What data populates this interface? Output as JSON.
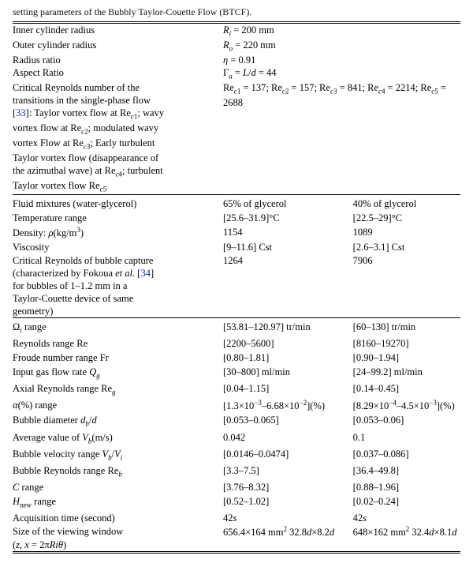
{
  "caption": "setting parameters of the Bubbly Taylor-Couette Flow (BTCF).",
  "geom": {
    "inner_label": "Inner cylinder radius",
    "inner_val": "Rᵢ = 200 mm",
    "outer_label": "Outer cylinder radius",
    "outer_val": "Rₒ = 220 mm",
    "ratio_label": "Radius ratio",
    "ratio_val": "η = 0.91",
    "aspect_label": "Aspect Ratio",
    "aspect_val": "Γₐ = L/d = 44",
    "rec_label_1": "Critical Reynolds number of the",
    "rec_label_2": "transitions in the single-phase flow",
    "rec_label_3a": "[",
    "rec_ref": "33",
    "rec_label_3b": "]: Taylor vortex flow at Re_c1; wavy",
    "rec_label_4": "vortex flow at Re_c2; modulated wavy",
    "rec_label_5": "vortex Flow at Re_c3; Early turbulent",
    "rec_label_6": "Taylor vortex flow (disappearance of",
    "rec_label_7": "the azimuthal wave) at Re_c4; turbulent",
    "rec_label_8": "Taylor vortex flow Re_c5",
    "rec_val": "Re_c1 = 137; Re_c2 = 157; Re_c3 = 841; Re_c4 = 2214; Re_c5 = 2688"
  },
  "cols": {
    "mix_label": "Fluid mixtures (water-glycerol)",
    "mix_a": "65% of glycerol",
    "mix_b": "40% of glycerol",
    "temp_label": "Temperature range",
    "temp_a": "[25.6–31.9]°C",
    "temp_b": "[22.5–29]°C",
    "dens_label": "Density: ρ(kg/m³)",
    "dens_a": "1154",
    "dens_b": "1089",
    "visc_label": "Viscosity",
    "visc_a": "[9–11.6] Cst",
    "visc_b": "[2.6–3.1] Cst",
    "crit_label_1": "Critical Reynolds of bubble capture",
    "crit_label_2a": "(characterized by Fokoua ",
    "crit_label_2b": "et al.",
    "crit_label_2c": " [",
    "crit_ref": "34",
    "crit_label_2d": "]",
    "crit_label_3": "for bubbles of 1–1.2 mm in a",
    "crit_label_4": "Taylor-Couette device of same",
    "crit_label_5": "geometry)",
    "crit_a": "1264",
    "crit_b": "7906"
  },
  "rows": {
    "omega_label": "Ωᵢ range",
    "omega_a": "[53.81–120.97] tr/min",
    "omega_b": "[60–130] tr/min",
    "re_label": "Reynolds range Re",
    "re_a": "[2200–5600]",
    "re_b": "[8160–19270]",
    "fr_label": "Froude number range Fr",
    "fr_a": "[0.80–1.81]",
    "fr_b": "[0.90–1.94]",
    "qg_label": "Input gas flow rate Q_g",
    "qg_a": "[30–800] ml/min",
    "qg_b": "[24–99.2] ml/min",
    "reg_label": "Axial Reynolds range Re_g",
    "reg_a": "[0.04–1.15]",
    "reg_b": "[0.14–0.45]",
    "alpha_label": "α(%) range",
    "alpha_a": "[1.3×10⁻³–6.68×10⁻²](%)",
    "alpha_b": "[8.29×10⁻⁴–4.5×10⁻³](%)",
    "dbd_label": "Bubble diameter d_b/d",
    "dbd_a": "[0.053–0.065]",
    "dbd_b": "[0.053–0.06]",
    "vb_label": "Average value of V_b(m/s)",
    "vb_a": "0.042",
    "vb_b": "0.1",
    "vbvi_label": "Bubble velocity range V_b/V_i",
    "vbvi_a": "[0.0146–0.0474]",
    "vbvi_b": "[0.037–0.086]",
    "reb_label": "Bubble Reynolds range Re_b",
    "reb_a": "[3.3–7.5]",
    "reb_b": "[36.4–49.8]",
    "c_label": "C range",
    "c_a": "[3.76–8.32]",
    "c_b": "[0.88–1.96]",
    "h_label": "H_new range",
    "h_a": "[0.52–1.02]",
    "h_b": "[0.02–0.24]",
    "acq_label": "Acquisition time (second)",
    "acq_a": "42s",
    "acq_b": "42s",
    "win_label_1": "Size of the viewing window",
    "win_label_2": "(z, x = 2πRiθ)",
    "win_a": "656.4×164 mm² 32.8d×8.2d",
    "win_b": "648×162 mm² 32.4d×8.1d"
  },
  "style": {
    "font_family": "Times New Roman",
    "font_size_pt": 9.5,
    "text_color": "#000000",
    "background_color": "#ffffff",
    "link_color": "#1020c0",
    "rule_color": "#000000",
    "col_widths_pct": [
      47,
      29,
      24
    ]
  }
}
